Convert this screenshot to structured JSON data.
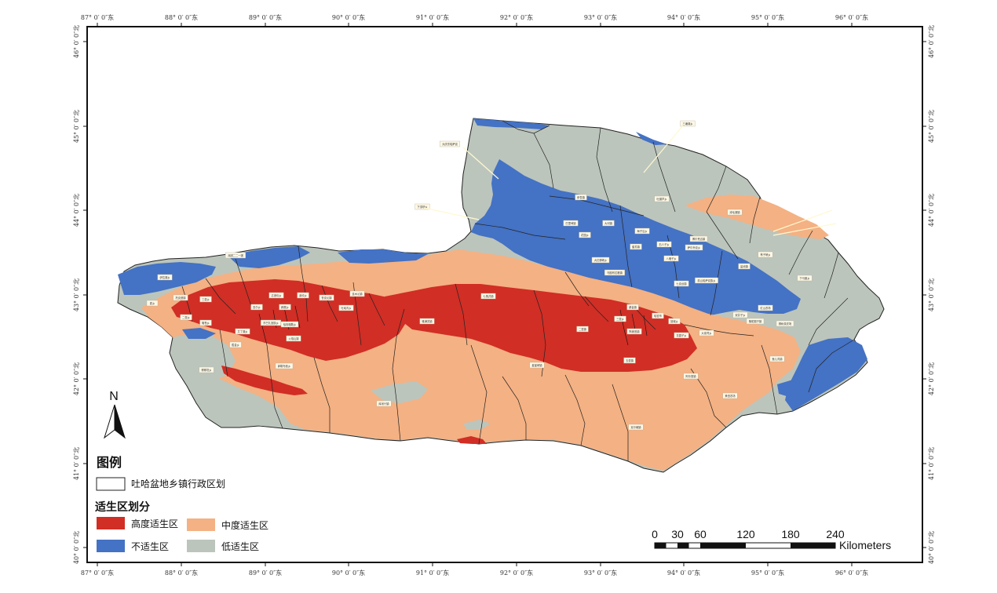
{
  "map": {
    "lon_labels": [
      "87° 0′ 0″东",
      "88° 0′ 0″东",
      "89° 0′ 0″东",
      "90° 0′ 0″东",
      "91° 0′ 0″东",
      "92° 0′ 0″东",
      "93° 0′ 0″东",
      "94° 0′ 0″东",
      "95° 0′ 0″东",
      "96° 0′ 0″东"
    ],
    "lat_labels": [
      "46° 0′ 0″北",
      "45° 0′ 0″北",
      "44° 0′ 0″北",
      "43° 0′ 0″北",
      "42° 0′ 0″北",
      "41° 0′ 0″北",
      "40° 0′ 0″北"
    ],
    "colors": {
      "high": "#d12e25",
      "medium": "#f4b183",
      "unsuitable": "#4472c4",
      "low": "#bcc5bc",
      "boundary": "#222222"
    },
    "place_labels": [
      "三塘湖乡",
      "大庆东哈萨克",
      "下涝坝乡",
      "伊吾镇",
      "淖毛湖镇",
      "吐葫芦乡",
      "苇子峡乡",
      "盐池镇",
      "前山哈萨克族乡",
      "下马崖乡",
      "巴里坤镇",
      "大河镇",
      "花园乡",
      "奎苏镇",
      "石人子乡",
      "萨尔乔克乡",
      "大红柳峡乡",
      "海子沿乡",
      "八墙子乡",
      "博尔羌吉镇",
      "乌图布拉格镇",
      "七角井镇",
      "雅满苏镇",
      "星星峡镇",
      "二堡镇",
      "三堡乡",
      "陶家宫镇",
      "五堡镇",
      "大泉湾乡",
      "哈密市",
      "回城乡",
      "花园子乡",
      "双井子乡",
      "骆驼圈子镇",
      "七克台镇",
      "鄯善镇",
      "连木沁镇",
      "吐峪沟乡",
      "鲁克沁镇",
      "迪坎乡",
      "达浪坎乡",
      "辟展乡",
      "东巴扎回族乡",
      "火焰山镇",
      "恰特喀勒乡",
      "亚尔乡",
      "艾丁湖乡",
      "胜金乡",
      "葡萄乡",
      "二堡乡",
      "三堡乡",
      "托克逊镇",
      "伊拉湖乡",
      "夏乡",
      "郭勒布依乡",
      "博斯坦乡",
      "库米什镇",
      "克尔碱镇",
      "阿乐惠镇",
      "鱼儿沟镇",
      "兵团二二一团",
      "红山农场",
      "柳树泉农场",
      "黄田农场"
    ],
    "legend": {
      "title": "图例",
      "admin_label": "吐哈盆地乡镇行政区划",
      "subtitle": "适生区划分",
      "items": [
        {
          "label": "高度适生区",
          "color": "#d12e25"
        },
        {
          "label": "中度适生区",
          "color": "#f4b183"
        },
        {
          "label": "不适生区",
          "color": "#4472c4"
        },
        {
          "label": "低适生区",
          "color": "#bcc5bc"
        }
      ]
    },
    "north_arrow": "N",
    "scale_bar": {
      "labels": [
        "0",
        "30",
        "60",
        "120",
        "180",
        "240"
      ],
      "unit": "Kilometers"
    }
  }
}
